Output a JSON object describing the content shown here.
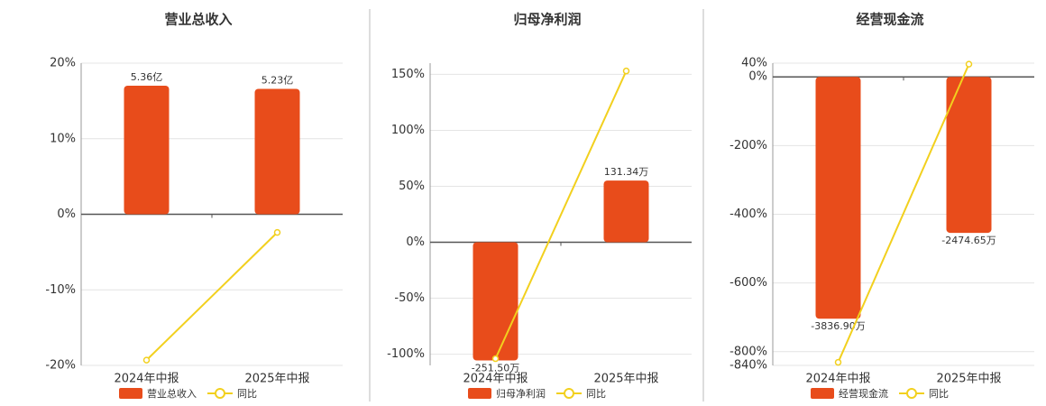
{
  "chart_data": [
    {
      "type": "bar",
      "title": "营业总收入",
      "categories": [
        "2024年中报",
        "2025年中报"
      ],
      "series": [
        {
          "name": "营业总收入",
          "color": "#e84c1b",
          "axis": "y2",
          "values": [
            5.36,
            5.23
          ],
          "value_labels": [
            "5.36亿",
            "5.23亿"
          ]
        },
        {
          "name": "同比",
          "type": "line",
          "color": "#f2d01e",
          "values": [
            -19.3,
            -2.4
          ]
        }
      ],
      "ylim": [
        -20,
        20
      ],
      "yticks": [
        {
          "value": -20,
          "label": "-20%"
        },
        {
          "value": -10,
          "label": "-10%"
        },
        {
          "value": 0,
          "label": "0%"
        },
        {
          "value": 10,
          "label": "10%"
        },
        {
          "value": 20,
          "label": "20%"
        }
      ],
      "y2lim": [
        -6.3,
        6.3
      ],
      "grid": true
    },
    {
      "type": "bar",
      "title": "归母净利润",
      "categories": [
        "2024年中报",
        "2025年中报"
      ],
      "series": [
        {
          "name": "归母净利润",
          "color": "#e84c1b",
          "axis": "y2",
          "values": [
            -251.5,
            131.34
          ],
          "value_labels": [
            "-251.50万",
            "131.34万"
          ]
        },
        {
          "name": "同比",
          "type": "line",
          "color": "#f2d01e",
          "values": [
            -104,
            153
          ]
        }
      ],
      "ylim": [
        -110,
        160
      ],
      "yticks": [
        {
          "value": -100,
          "label": "-100%"
        },
        {
          "value": -50,
          "label": "-50%"
        },
        {
          "value": 0,
          "label": "0%"
        },
        {
          "value": 50,
          "label": "50%"
        },
        {
          "value": 100,
          "label": "100%"
        },
        {
          "value": 150,
          "label": "150%"
        }
      ],
      "y2lim": [
        -262,
        381
      ],
      "grid": true
    },
    {
      "type": "bar",
      "title": "经营现金流",
      "categories": [
        "2024年中报",
        "2025年中报"
      ],
      "series": [
        {
          "name": "经营现金流",
          "color": "#e84c1b",
          "axis": "y2",
          "values": [
            -3836.9,
            -2474.65
          ],
          "value_labels": [
            "-3836.90万",
            "-2474.65万"
          ]
        },
        {
          "name": "同比",
          "type": "line",
          "color": "#f2d01e",
          "values": [
            -831,
            37
          ]
        }
      ],
      "ylim": [
        -840,
        40
      ],
      "yticks": [
        {
          "value": -840,
          "label": "-840%"
        },
        {
          "value": -800,
          "label": "-800%"
        },
        {
          "value": -600,
          "label": "-600%"
        },
        {
          "value": -400,
          "label": "-400%"
        },
        {
          "value": -200,
          "label": "-200%"
        },
        {
          "value": 0,
          "label": "0%"
        },
        {
          "value": 40,
          "label": "40%"
        }
      ],
      "y2lim": [
        -4578,
        218
      ],
      "grid": true
    }
  ]
}
